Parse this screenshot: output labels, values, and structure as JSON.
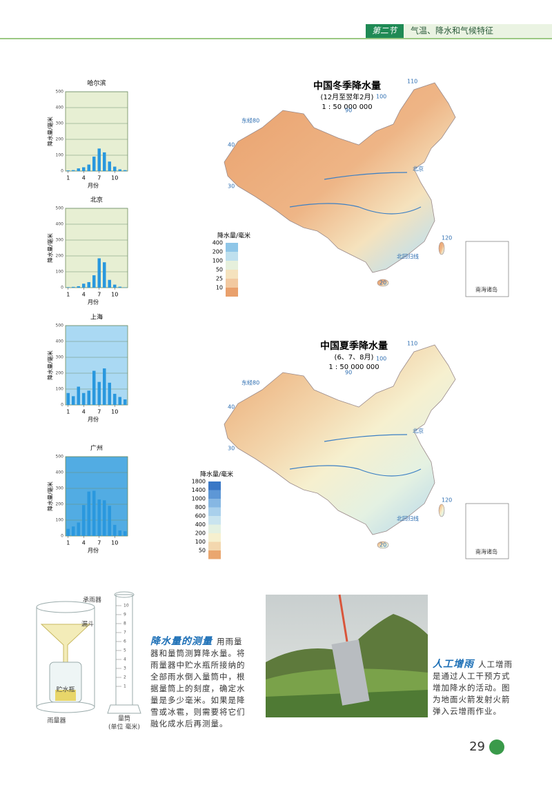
{
  "header": {
    "section": "第二节",
    "title": "气温、降水和气候特征"
  },
  "climate_charts": [
    {
      "type": "bar",
      "title": "哈尔滨",
      "y_label": "降水量/毫米",
      "x_label": "月份",
      "x": [
        1,
        2,
        3,
        4,
        5,
        6,
        7,
        8,
        9,
        10,
        11,
        12
      ],
      "xlim": [
        0.5,
        12.5
      ],
      "xticks": [
        1,
        4,
        7,
        10
      ],
      "ylim": [
        0,
        500
      ],
      "yticks": [
        0,
        100,
        200,
        300,
        400,
        500
      ],
      "values": [
        4,
        6,
        17,
        24,
        41,
        91,
        142,
        118,
        60,
        28,
        11,
        6
      ],
      "color": "#2a98de",
      "background": "#e7efd3"
    },
    {
      "type": "bar",
      "title": "北京",
      "y_label": "降水量/毫米",
      "x_label": "月份",
      "x": [
        1,
        2,
        3,
        4,
        5,
        6,
        7,
        8,
        9,
        10,
        11,
        12
      ],
      "xlim": [
        0.5,
        12.5
      ],
      "xticks": [
        1,
        4,
        7,
        10
      ],
      "ylim": [
        0,
        500
      ],
      "yticks": [
        0,
        100,
        200,
        300,
        400,
        500
      ],
      "values": [
        3,
        5,
        9,
        25,
        35,
        78,
        185,
        160,
        49,
        19,
        6,
        2
      ],
      "color": "#2a98de",
      "background": "#e7efd3"
    },
    {
      "type": "bar",
      "title": "上海",
      "y_label": "降水量/毫米",
      "x_label": "月份",
      "x": [
        1,
        2,
        3,
        4,
        5,
        6,
        7,
        8,
        9,
        10,
        11,
        12
      ],
      "xlim": [
        0.5,
        12.5
      ],
      "xticks": [
        1,
        4,
        7,
        10
      ],
      "ylim": [
        0,
        500
      ],
      "yticks": [
        0,
        100,
        200,
        300,
        400,
        500
      ],
      "values": [
        75,
        55,
        115,
        75,
        90,
        215,
        145,
        230,
        140,
        70,
        50,
        35
      ],
      "color": "#2a98de",
      "background": "#aad9f3"
    },
    {
      "type": "bar",
      "title": "广州",
      "y_label": "降水量/毫米",
      "x_label": "月份",
      "x": [
        1,
        2,
        3,
        4,
        5,
        6,
        7,
        8,
        9,
        10,
        11,
        12
      ],
      "xlim": [
        0.5,
        12.5
      ],
      "xticks": [
        1,
        4,
        7,
        10
      ],
      "ylim": [
        0,
        500
      ],
      "yticks": [
        0,
        100,
        200,
        300,
        400,
        500
      ],
      "values": [
        45,
        60,
        85,
        195,
        280,
        285,
        230,
        225,
        190,
        70,
        35,
        30
      ],
      "color": "#2a98de",
      "background": "#52ace3"
    }
  ],
  "maps": [
    {
      "title": "中国冬季降水量",
      "subtitle": "(12月至翌年2月)",
      "scale": "1 : 50 000 000",
      "legend_title": "降水量/毫米",
      "levels": [
        400,
        200,
        100,
        50,
        25,
        10
      ],
      "colors": [
        "#8fc6e8",
        "#bfe0ee",
        "#e6f0dc",
        "#f5e2bd",
        "#f2c9a0",
        "#e9a06c"
      ],
      "place_labels": [
        "东经80",
        "北京",
        "北回归线",
        "南海诸岛"
      ],
      "grid_labels": [
        40,
        30,
        20,
        120,
        110,
        100,
        90
      ]
    },
    {
      "title": "中国夏季降水量",
      "subtitle": "(6、7、8月)",
      "scale": "1 : 50 000 000",
      "legend_title": "降水量/毫米",
      "levels": [
        1800,
        1400,
        1000,
        800,
        600,
        400,
        200,
        100,
        50
      ],
      "colors": [
        "#3a78c6",
        "#5d97d6",
        "#86b7e3",
        "#a9d0ec",
        "#c9e4ef",
        "#e4f1e2",
        "#f6f0cf",
        "#f3d7ae",
        "#eaa66f"
      ],
      "place_labels": [
        "东经80",
        "北京",
        "北回归线",
        "南海诸岛"
      ],
      "grid_labels": [
        40,
        30,
        20,
        120,
        110,
        100,
        90
      ]
    }
  ],
  "measurement": {
    "heading": "降水量的测量",
    "text": "用雨量器和量筒测算降水量。将雨量器中贮水瓶所接纳的全部雨水倒入量筒中，根据量筒上的刻度，确定水量是多少毫米。如果是降雪或冰雹，则需要将它们融化成水后再测量。",
    "labels": {
      "funnel_cup": "承雨器",
      "funnel": "漏斗",
      "bottle": "贮水瓶",
      "gauge": "雨量器",
      "cylinder": "量筒",
      "unit": "(单位  毫米)"
    },
    "cylinder_scale": [
      10,
      9,
      8,
      7,
      6,
      5,
      4,
      3,
      2,
      1
    ]
  },
  "rain_enhancement": {
    "heading": "人工增雨",
    "text": "人工增雨是通过人工干预方式增加降水的活动。图为地面火箭发射火箭弹入云增雨作业。"
  },
  "page_number": 29
}
